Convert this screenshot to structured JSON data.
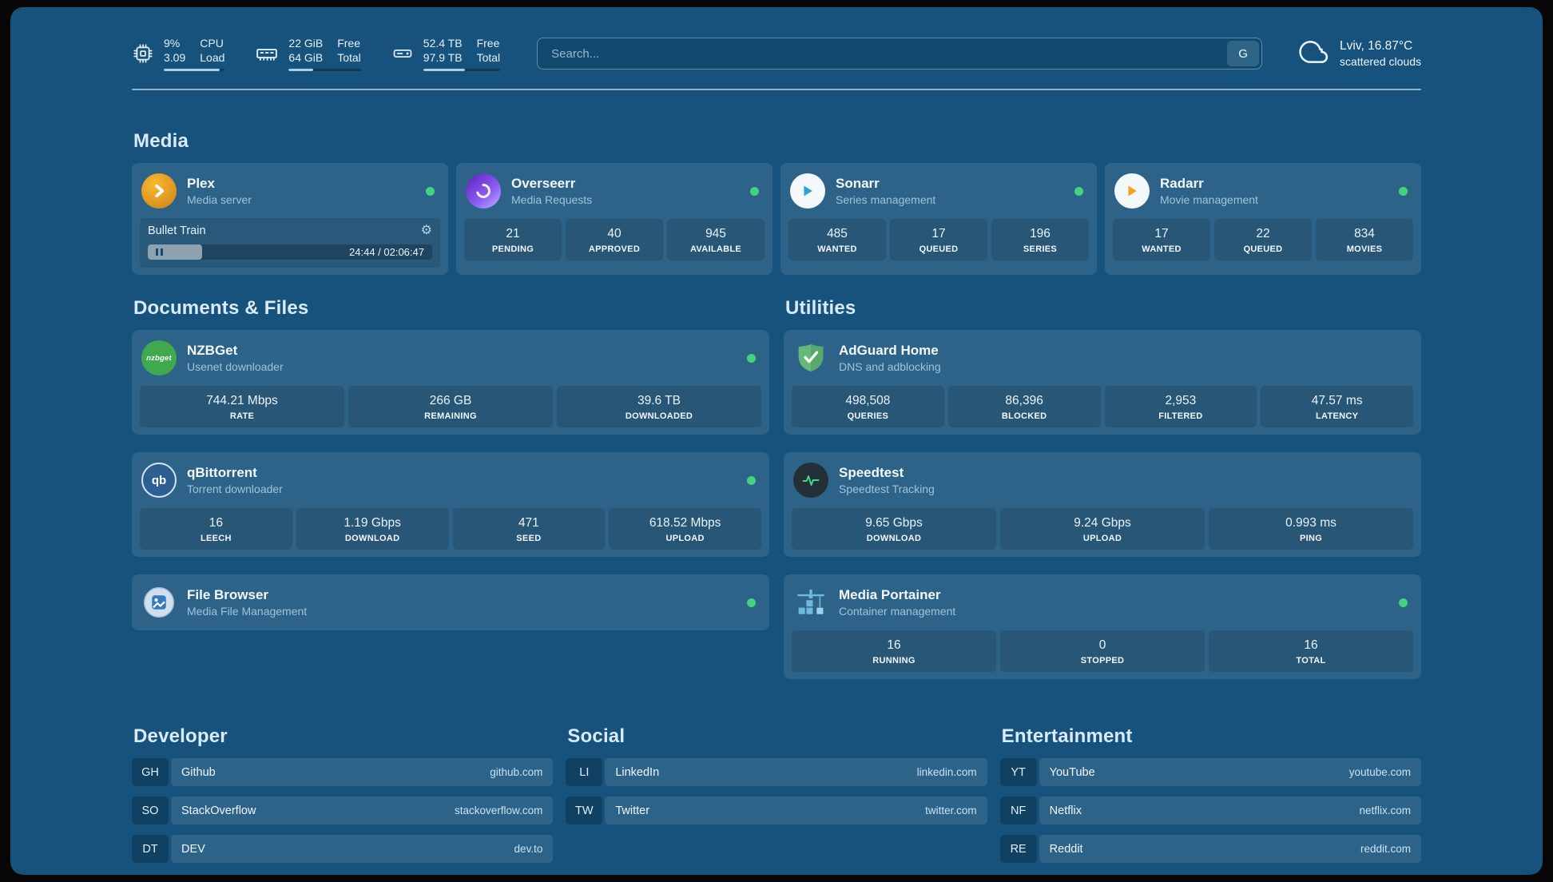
{
  "colors": {
    "page_background": "#16527b",
    "status_online": "#44d37f",
    "accent_bar": "#a9cfe8"
  },
  "topbar": {
    "cpu": {
      "usage": "9%",
      "load": "3.09",
      "label_top": "CPU",
      "label_bottom": "Load",
      "bar_percent": 91
    },
    "memory": {
      "free": "22 GiB",
      "total": "64 GiB",
      "label_top": "Free",
      "label_bottom": "Total",
      "bar_percent": 34
    },
    "disk": {
      "free": "52.4 TB",
      "total": "97.9 TB",
      "label_top": "Free",
      "label_bottom": "Total",
      "bar_percent": 54
    },
    "search": {
      "placeholder": "Search...",
      "provider": "G"
    },
    "weather": {
      "location": "Lviv, 16.87°C",
      "condition": "scattered clouds"
    }
  },
  "media": {
    "title": "Media",
    "plex": {
      "name": "Plex",
      "desc": "Media server",
      "now_playing": "Bullet Train",
      "time": "24:44 / 02:06:47",
      "progress_percent": 19
    },
    "overseerr": {
      "name": "Overseerr",
      "desc": "Media Requests",
      "stats": [
        {
          "value": "21",
          "label": "PENDING"
        },
        {
          "value": "40",
          "label": "APPROVED"
        },
        {
          "value": "945",
          "label": "AVAILABLE"
        }
      ]
    },
    "sonarr": {
      "name": "Sonarr",
      "desc": "Series management",
      "stats": [
        {
          "value": "485",
          "label": "WANTED"
        },
        {
          "value": "17",
          "label": "QUEUED"
        },
        {
          "value": "196",
          "label": "SERIES"
        }
      ]
    },
    "radarr": {
      "name": "Radarr",
      "desc": "Movie management",
      "stats": [
        {
          "value": "17",
          "label": "WANTED"
        },
        {
          "value": "22",
          "label": "QUEUED"
        },
        {
          "value": "834",
          "label": "MOVIES"
        }
      ]
    }
  },
  "documents": {
    "title": "Documents & Files",
    "nzbget": {
      "name": "NZBGet",
      "desc": "Usenet downloader",
      "icon_text": "nzbget",
      "stats": [
        {
          "value": "744.21 Mbps",
          "label": "RATE"
        },
        {
          "value": "266 GB",
          "label": "REMAINING"
        },
        {
          "value": "39.6 TB",
          "label": "DOWNLOADED"
        }
      ]
    },
    "qbittorrent": {
      "name": "qBittorrent",
      "desc": "Torrent downloader",
      "icon_text": "qb",
      "stats": [
        {
          "value": "16",
          "label": "LEECH"
        },
        {
          "value": "1.19 Gbps",
          "label": "DOWNLOAD"
        },
        {
          "value": "471",
          "label": "SEED"
        },
        {
          "value": "618.52 Mbps",
          "label": "UPLOAD"
        }
      ]
    },
    "filebrowser": {
      "name": "File Browser",
      "desc": "Media File Management"
    }
  },
  "utilities": {
    "title": "Utilities",
    "adguard": {
      "name": "AdGuard Home",
      "desc": "DNS and adblocking",
      "stats": [
        {
          "value": "498,508",
          "label": "QUERIES"
        },
        {
          "value": "86,396",
          "label": "BLOCKED"
        },
        {
          "value": "2,953",
          "label": "FILTERED"
        },
        {
          "value": "47.57 ms",
          "label": "LATENCY"
        }
      ]
    },
    "speedtest": {
      "name": "Speedtest",
      "desc": "Speedtest Tracking",
      "stats": [
        {
          "value": "9.65 Gbps",
          "label": "DOWNLOAD"
        },
        {
          "value": "9.24 Gbps",
          "label": "UPLOAD"
        },
        {
          "value": "0.993 ms",
          "label": "PING"
        }
      ]
    },
    "portainer": {
      "name": "Media Portainer",
      "desc": "Container management",
      "stats": [
        {
          "value": "16",
          "label": "RUNNING"
        },
        {
          "value": "0",
          "label": "STOPPED"
        },
        {
          "value": "16",
          "label": "TOTAL"
        }
      ]
    }
  },
  "bookmarks": {
    "developer": {
      "title": "Developer",
      "items": [
        {
          "abbr": "GH",
          "name": "Github",
          "domain": "github.com"
        },
        {
          "abbr": "SO",
          "name": "StackOverflow",
          "domain": "stackoverflow.com"
        },
        {
          "abbr": "DT",
          "name": "DEV",
          "domain": "dev.to"
        }
      ]
    },
    "social": {
      "title": "Social",
      "items": [
        {
          "abbr": "LI",
          "name": "LinkedIn",
          "domain": "linkedin.com"
        },
        {
          "abbr": "TW",
          "name": "Twitter",
          "domain": "twitter.com"
        }
      ]
    },
    "entertainment": {
      "title": "Entertainment",
      "items": [
        {
          "abbr": "YT",
          "name": "YouTube",
          "domain": "youtube.com"
        },
        {
          "abbr": "NF",
          "name": "Netflix",
          "domain": "netflix.com"
        },
        {
          "abbr": "RE",
          "name": "Reddit",
          "domain": "reddit.com"
        }
      ]
    }
  }
}
